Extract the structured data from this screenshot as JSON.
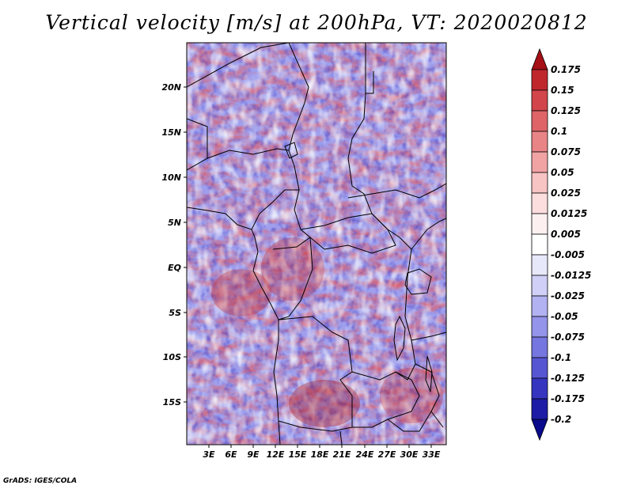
{
  "title": "Vertical velocity [m/s] at 200hPa, VT: 2020020812",
  "footer": "GrADS: IGES/COLA",
  "map": {
    "lat_labels": [
      "20N",
      "15N",
      "10N",
      "5N",
      "EQ",
      "5S",
      "10S",
      "15S"
    ],
    "lon_labels": [
      "3E",
      "6E",
      "9E",
      "12E",
      "15E",
      "18E",
      "21E",
      "24E",
      "27E",
      "30E",
      "33E"
    ]
  },
  "colorbar": {
    "levels": [
      "0.175",
      "0.15",
      "0.125",
      "0.1",
      "0.075",
      "0.05",
      "0.025",
      "0.0125",
      "0.005",
      "-0.005",
      "-0.0125",
      "-0.025",
      "-0.05",
      "-0.075",
      "-0.1",
      "-0.125",
      "-0.175",
      "-0.2"
    ],
    "colors": [
      "#a50f15",
      "#c0272d",
      "#d2454a",
      "#df6467",
      "#e98486",
      "#f1a3a4",
      "#f7c3c3",
      "#fbdedd",
      "#fdf0f0",
      "#ffffff",
      "#e8e8fb",
      "#cfcff7",
      "#b2b2f2",
      "#9494ea",
      "#7676e0",
      "#5656d2",
      "#3535c0",
      "#1c1ca6",
      "#0a0a8c"
    ]
  }
}
